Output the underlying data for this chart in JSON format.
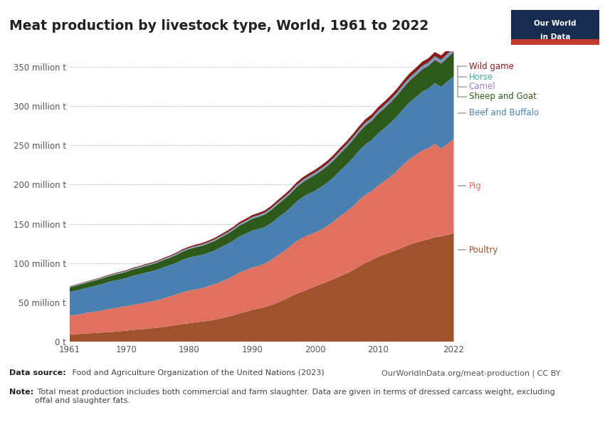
{
  "title": "Meat production by livestock type, World, 1961 to 2022",
  "years": [
    1961,
    1962,
    1963,
    1964,
    1965,
    1966,
    1967,
    1968,
    1969,
    1970,
    1971,
    1972,
    1973,
    1974,
    1975,
    1976,
    1977,
    1978,
    1979,
    1980,
    1981,
    1982,
    1983,
    1984,
    1985,
    1986,
    1987,
    1988,
    1989,
    1990,
    1991,
    1992,
    1993,
    1994,
    1995,
    1996,
    1997,
    1998,
    1999,
    2000,
    2001,
    2002,
    2003,
    2004,
    2005,
    2006,
    2007,
    2008,
    2009,
    2010,
    2011,
    2012,
    2013,
    2014,
    2015,
    2016,
    2017,
    2018,
    2019,
    2020,
    2021,
    2022
  ],
  "series": {
    "Poultry": [
      9.0,
      9.5,
      10.0,
      10.5,
      11.0,
      11.5,
      12.0,
      12.5,
      13.2,
      14.0,
      14.8,
      15.5,
      16.2,
      17.0,
      17.8,
      18.8,
      20.0,
      21.2,
      22.5,
      23.5,
      24.5,
      25.5,
      26.5,
      28.0,
      29.5,
      31.5,
      33.5,
      36.0,
      38.0,
      40.5,
      42.0,
      44.0,
      46.5,
      49.5,
      53.0,
      57.0,
      61.0,
      64.0,
      67.0,
      70.5,
      73.5,
      76.5,
      80.0,
      83.5,
      87.0,
      91.0,
      96.0,
      100.5,
      104.0,
      108.0,
      111.0,
      114.0,
      117.0,
      120.5,
      123.5,
      126.0,
      128.5,
      130.5,
      133.0,
      134.0,
      136.0,
      138.0
    ],
    "Pig": [
      24.0,
      24.5,
      25.5,
      26.5,
      27.0,
      28.0,
      29.0,
      30.0,
      30.5,
      31.0,
      32.0,
      32.5,
      33.5,
      34.0,
      35.0,
      36.5,
      37.5,
      39.0,
      40.5,
      41.5,
      42.0,
      42.5,
      44.0,
      45.0,
      46.5,
      48.0,
      50.0,
      52.0,
      53.0,
      54.0,
      54.5,
      55.5,
      57.5,
      60.0,
      62.0,
      64.0,
      66.5,
      68.5,
      69.0,
      68.5,
      69.5,
      71.0,
      73.5,
      76.5,
      79.0,
      81.5,
      84.5,
      86.5,
      88.0,
      91.0,
      93.5,
      96.5,
      100.5,
      105.0,
      109.0,
      112.0,
      115.0,
      116.0,
      119.0,
      112.0,
      116.0,
      120.0
    ],
    "Beef and Buffalo": [
      30.0,
      31.0,
      31.5,
      32.0,
      33.0,
      33.5,
      34.5,
      35.0,
      35.5,
      36.0,
      37.0,
      37.5,
      38.0,
      38.5,
      39.0,
      39.5,
      40.0,
      40.5,
      41.5,
      42.0,
      42.5,
      42.5,
      42.5,
      43.0,
      44.0,
      44.5,
      45.0,
      46.0,
      46.5,
      47.0,
      47.0,
      46.5,
      47.0,
      48.0,
      48.5,
      49.0,
      50.5,
      51.5,
      52.5,
      53.5,
      54.5,
      55.5,
      56.5,
      58.0,
      59.5,
      61.5,
      63.0,
      64.5,
      65.0,
      66.5,
      67.5,
      68.5,
      69.5,
      71.0,
      72.5,
      73.5,
      75.0,
      76.0,
      77.5,
      78.5,
      79.5,
      80.0
    ],
    "Sheep and Goat": [
      6.0,
      6.2,
      6.4,
      6.6,
      6.8,
      7.0,
      7.2,
      7.4,
      7.6,
      7.8,
      8.0,
      8.2,
      8.5,
      8.7,
      9.0,
      9.3,
      9.6,
      10.0,
      10.4,
      10.8,
      11.2,
      11.5,
      11.8,
      12.2,
      12.6,
      13.0,
      13.5,
      14.0,
      14.5,
      15.0,
      15.5,
      16.0,
      16.5,
      17.0,
      17.5,
      18.0,
      18.5,
      19.0,
      19.5,
      20.0,
      20.5,
      21.0,
      21.5,
      22.0,
      22.5,
      23.0,
      23.5,
      24.0,
      24.5,
      25.0,
      25.5,
      26.0,
      26.5,
      27.0,
      27.5,
      28.0,
      28.5,
      29.0,
      29.5,
      30.0,
      30.5,
      31.0
    ],
    "Camel": [
      0.3,
      0.32,
      0.34,
      0.36,
      0.38,
      0.4,
      0.42,
      0.44,
      0.46,
      0.48,
      0.5,
      0.52,
      0.55,
      0.58,
      0.6,
      0.62,
      0.65,
      0.68,
      0.7,
      0.73,
      0.76,
      0.79,
      0.82,
      0.85,
      0.88,
      0.91,
      0.94,
      0.97,
      1.0,
      1.05,
      1.1,
      1.15,
      1.2,
      1.25,
      1.3,
      1.35,
      1.4,
      1.45,
      1.5,
      1.55,
      1.6,
      1.65,
      1.7,
      1.75,
      1.8,
      1.85,
      1.9,
      1.95,
      2.0,
      2.05,
      2.1,
      2.15,
      2.2,
      2.25,
      2.3,
      2.35,
      2.4,
      2.45,
      2.5,
      2.55,
      2.6,
      2.65
    ],
    "Horse": [
      0.6,
      0.62,
      0.63,
      0.64,
      0.65,
      0.66,
      0.67,
      0.68,
      0.7,
      0.72,
      0.74,
      0.76,
      0.78,
      0.8,
      0.82,
      0.84,
      0.86,
      0.88,
      0.9,
      0.92,
      0.95,
      0.97,
      1.0,
      1.02,
      1.05,
      1.07,
      1.1,
      1.12,
      1.15,
      1.17,
      1.2,
      1.22,
      1.25,
      1.27,
      1.3,
      1.33,
      1.36,
      1.39,
      1.42,
      1.45,
      1.48,
      1.51,
      1.54,
      1.57,
      1.6,
      1.63,
      1.66,
      1.69,
      1.72,
      1.75,
      1.78,
      1.81,
      1.84,
      1.87,
      1.9,
      1.93,
      1.96,
      1.99,
      2.02,
      2.05,
      2.08,
      2.11
    ],
    "Wild game": [
      0.5,
      0.55,
      0.6,
      0.65,
      0.7,
      0.75,
      0.8,
      0.85,
      0.9,
      0.95,
      1.0,
      1.05,
      1.1,
      1.15,
      1.2,
      1.25,
      1.3,
      1.4,
      1.5,
      1.6,
      1.7,
      1.8,
      1.9,
      2.0,
      2.1,
      2.2,
      2.3,
      2.4,
      2.5,
      2.6,
      2.7,
      2.8,
      2.9,
      3.0,
      3.1,
      3.2,
      3.3,
      3.4,
      3.5,
      3.6,
      3.7,
      3.8,
      3.9,
      4.0,
      4.1,
      4.2,
      4.3,
      4.4,
      4.5,
      4.6,
      4.7,
      4.8,
      4.9,
      5.0,
      5.1,
      5.2,
      5.3,
      5.4,
      5.5,
      5.6,
      5.7,
      5.8
    ]
  },
  "colors": {
    "Poultry": "#a0522d",
    "Pig": "#e07060",
    "Beef and Buffalo": "#4a80b0",
    "Sheep and Goat": "#2d5a1b",
    "Camel": "#9b7fc7",
    "Horse": "#4aa8a0",
    "Wild game": "#8b1a1a"
  },
  "legend_colors": {
    "Wild game": "#8b1a1a",
    "Horse": "#4aa8a0",
    "Camel": "#9b7fc7",
    "Sheep and Goat": "#2d5a1b",
    "Beef and Buffalo": "#4a80b0",
    "Pig": "#e07060",
    "Poultry": "#a0522d"
  },
  "yticks": [
    0,
    50,
    100,
    150,
    200,
    250,
    300,
    350
  ],
  "ytick_labels": [
    "0 t",
    "50 million t",
    "100 million t",
    "150 million t",
    "200 million t",
    "250 million t",
    "300 million t",
    "350 million t"
  ],
  "xticks": [
    1961,
    1970,
    1980,
    1990,
    2000,
    2010,
    2022
  ],
  "background_color": "#ffffff",
  "grid_color": "#cccccc",
  "logo_bg": "#162d50",
  "logo_stripe": "#c0392b",
  "data_source_bold": "Data source:",
  "data_source_rest": " Food and Agriculture Organization of the United Nations (2023)",
  "note_bold": "Note:",
  "note_rest": " Total meat production includes both commercial and farm slaughter. Data are given in terms of dressed carcass weight, excluding\noffal and slaughter fats.",
  "url": "OurWorldInData.org/meat-production | CC BY"
}
